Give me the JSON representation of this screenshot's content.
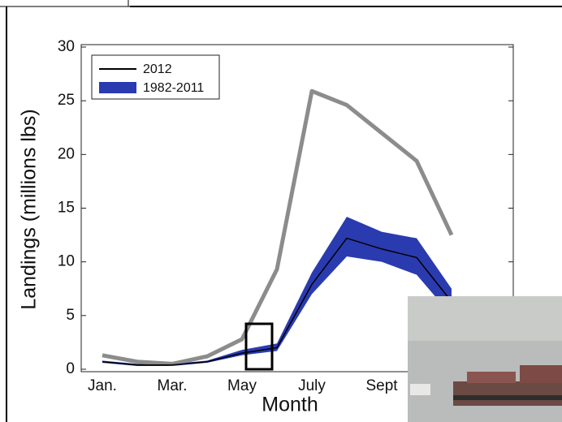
{
  "chart_data": {
    "type": "line",
    "xlabel": "Month",
    "ylabel": "Landings (millions lbs)",
    "categories": [
      "Jan.",
      null,
      "Mar.",
      null,
      "May",
      null,
      "July",
      null,
      "Sept",
      null,
      null,
      null
    ],
    "ylim": [
      0,
      30
    ],
    "yticks": [
      0,
      5,
      10,
      15,
      20,
      25,
      30
    ],
    "series": [
      {
        "color": "#8c8c8c",
        "values": [
          1.3,
          0.7,
          0.5,
          1.2,
          2.8,
          9.3,
          25.9,
          24.6,
          22.0,
          19.4,
          12.5,
          null
        ]
      },
      {
        "name": "2012",
        "color": "#000000",
        "values": [
          0.7,
          0.4,
          0.4,
          0.7,
          1.5,
          2.0,
          7.9,
          12.2,
          11.2,
          10.4,
          6.3,
          null
        ]
      },
      {
        "name": "1982-2011",
        "color": "#2a3bb0",
        "low": [
          0.6,
          0.3,
          0.3,
          0.6,
          1.3,
          1.7,
          7.0,
          10.5,
          10.0,
          8.8,
          5.0,
          null
        ],
        "high": [
          0.8,
          0.5,
          0.5,
          0.8,
          1.8,
          2.4,
          9.0,
          14.2,
          12.8,
          12.2,
          7.5,
          null
        ]
      }
    ]
  }
}
